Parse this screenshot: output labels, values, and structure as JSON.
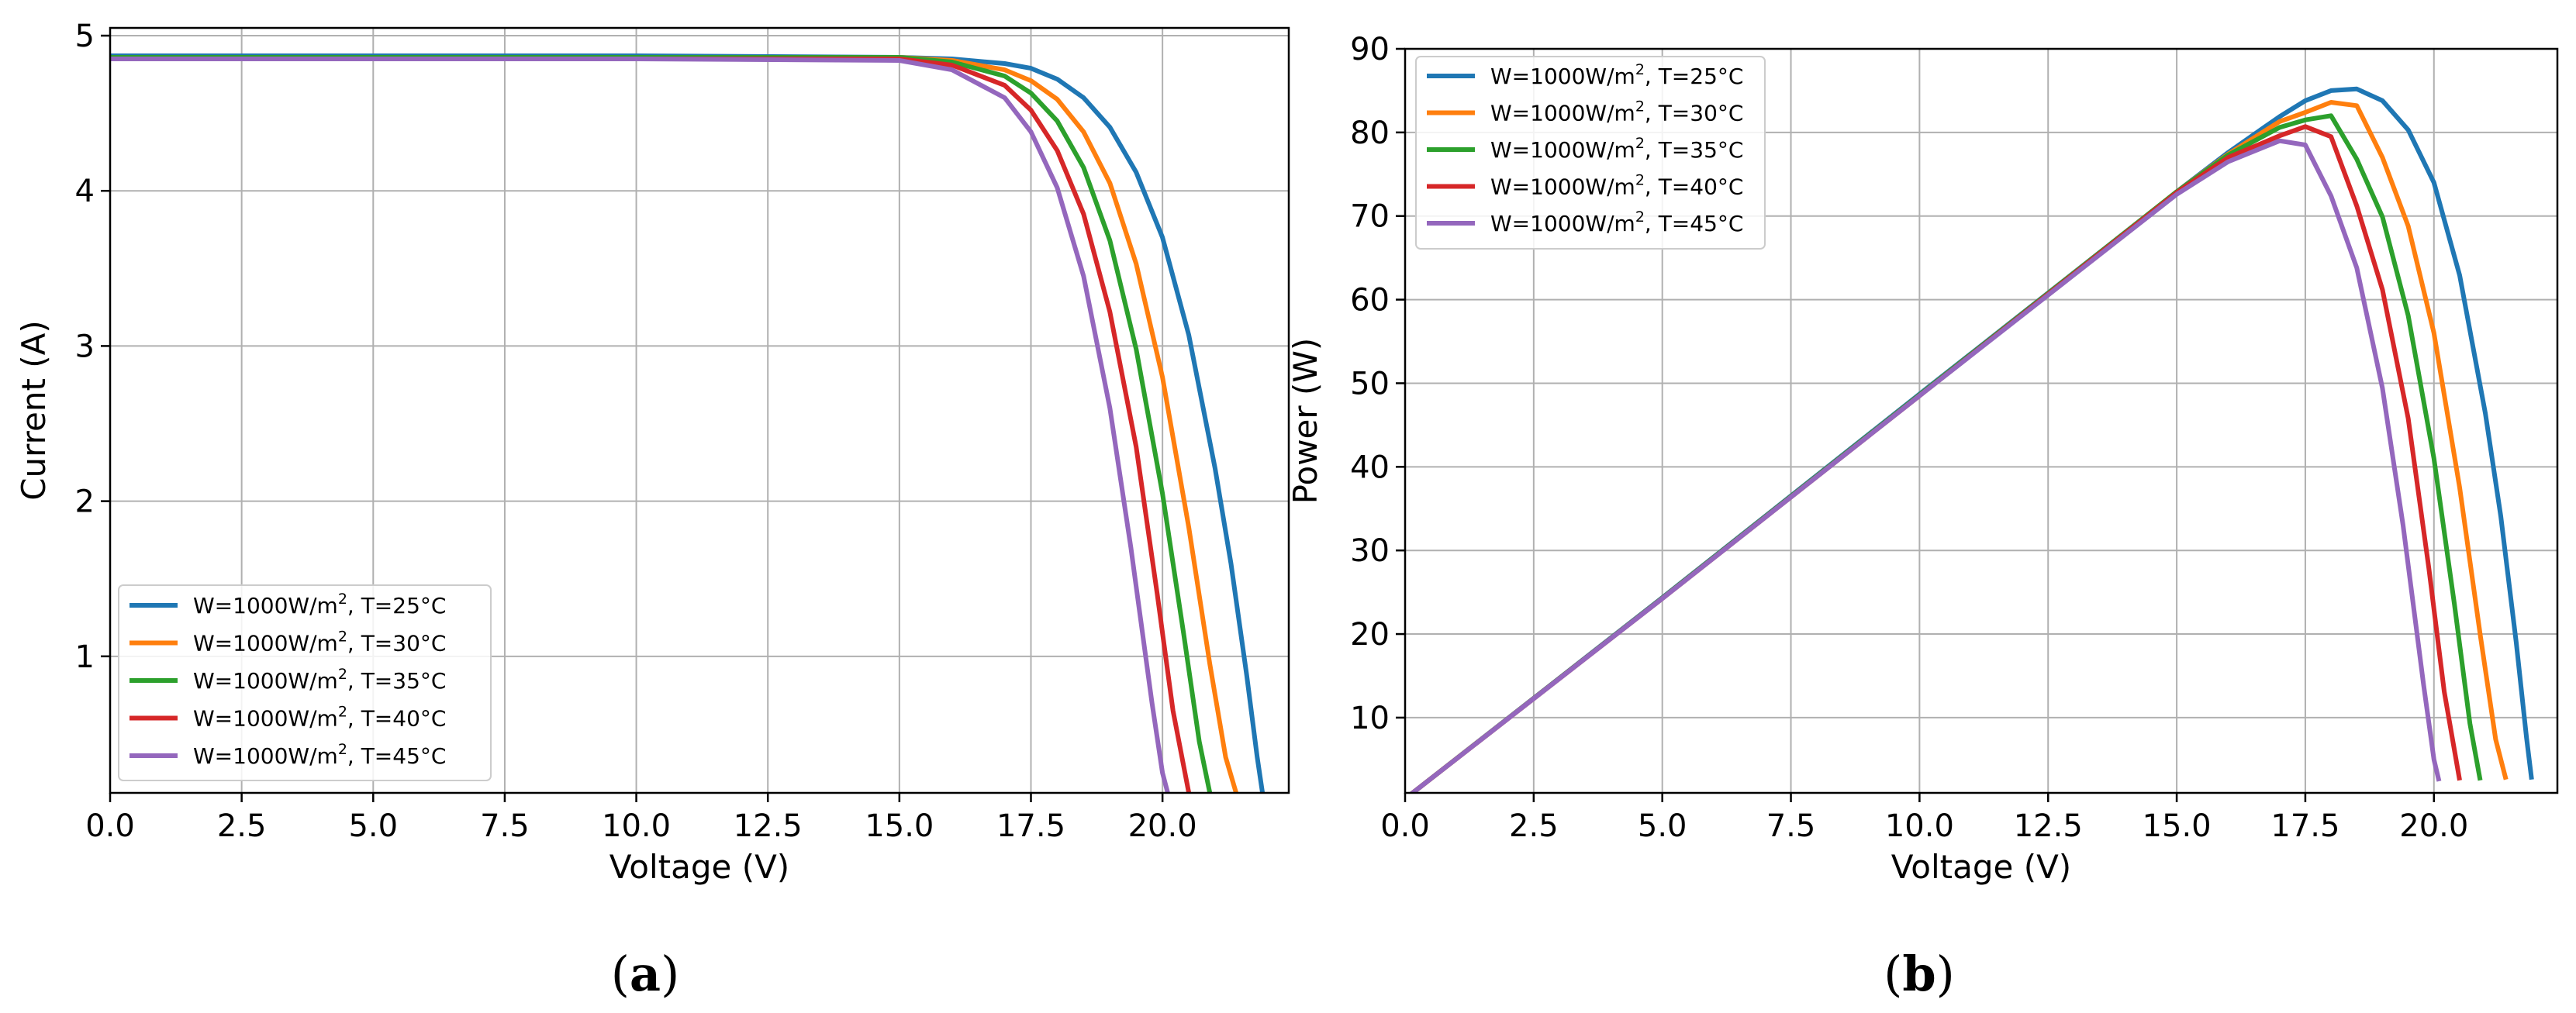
{
  "figure": {
    "captions": [
      {
        "open": "(",
        "letter": "a",
        "close": ")"
      },
      {
        "open": "(",
        "letter": "b",
        "close": ")"
      }
    ],
    "legend_unit": {
      "prefix": "W=1000W/m",
      "sup": "2"
    }
  },
  "chart_data": [
    {
      "type": "line",
      "title": "",
      "xlabel": "Voltage (V)",
      "ylabel": "Current (A)",
      "xlim": [
        0,
        22.4
      ],
      "ylim": [
        0.12,
        5.05
      ],
      "xticks": [
        0,
        2.5,
        5,
        7.5,
        10,
        12.5,
        15,
        17.5,
        20
      ],
      "xtick_labels": [
        "0.0",
        "2.5",
        "5.0",
        "7.5",
        "10.0",
        "12.5",
        "15.0",
        "17.5",
        "20.0"
      ],
      "yticks": [
        1,
        2,
        3,
        4,
        5
      ],
      "ytick_labels": [
        "1",
        "2",
        "3",
        "4",
        "5"
      ],
      "grid": true,
      "legend_position": "lower-left",
      "series": [
        {
          "name": "W=1000W/m2, T=25°C",
          "legend_suffix": ", T=25°C",
          "color": "#1f77b4",
          "x": [
            0,
            5,
            10,
            15,
            16,
            17,
            17.5,
            18,
            18.5,
            19,
            19.5,
            20,
            20.5,
            21,
            21.3,
            21.6,
            21.8,
            21.9
          ],
          "y": [
            4.87,
            4.87,
            4.87,
            4.86,
            4.85,
            4.82,
            4.79,
            4.72,
            4.6,
            4.41,
            4.12,
            3.7,
            3.07,
            2.21,
            1.6,
            0.88,
            0.35,
            0.12
          ]
        },
        {
          "name": "W=1000W/m2, T=30°C",
          "legend_suffix": ", T=30°C",
          "color": "#ff7f0e",
          "x": [
            0,
            5,
            10,
            15,
            16,
            17,
            17.5,
            18,
            18.5,
            19,
            19.5,
            20,
            20.5,
            20.9,
            21.2,
            21.4
          ],
          "y": [
            4.86,
            4.86,
            4.86,
            4.86,
            4.84,
            4.78,
            4.71,
            4.59,
            4.38,
            4.05,
            3.53,
            2.8,
            1.83,
            0.95,
            0.35,
            0.12
          ]
        },
        {
          "name": "W=1000W/m2, T=35°C",
          "legend_suffix": ", T=35°C",
          "color": "#2ca02c",
          "x": [
            0,
            5,
            10,
            15,
            16,
            17,
            17.5,
            18,
            18.5,
            19,
            19.5,
            20,
            20.4,
            20.7,
            20.9
          ],
          "y": [
            4.86,
            4.86,
            4.86,
            4.86,
            4.83,
            4.74,
            4.63,
            4.45,
            4.15,
            3.68,
            2.98,
            2.05,
            1.15,
            0.45,
            0.12
          ]
        },
        {
          "name": "W=1000W/m2, T=40°C",
          "legend_suffix": ", T=40°C",
          "color": "#d62728",
          "x": [
            0,
            5,
            10,
            15,
            16,
            17,
            17.5,
            18,
            18.5,
            19,
            19.5,
            19.9,
            20.2,
            20.5
          ],
          "y": [
            4.85,
            4.85,
            4.85,
            4.85,
            4.81,
            4.68,
            4.52,
            4.26,
            3.85,
            3.22,
            2.35,
            1.4,
            0.65,
            0.12
          ]
        },
        {
          "name": "W=1000W/m2, T=45°C",
          "legend_suffix": ", T=45°C",
          "color": "#9467bd",
          "x": [
            0,
            5,
            10,
            15,
            16,
            17,
            17.5,
            18,
            18.5,
            19,
            19.4,
            19.8,
            20.0,
            20.1
          ],
          "y": [
            4.85,
            4.85,
            4.85,
            4.84,
            4.78,
            4.6,
            4.38,
            4.02,
            3.45,
            2.6,
            1.7,
            0.7,
            0.25,
            0.12
          ]
        }
      ]
    },
    {
      "type": "line",
      "title": "",
      "xlabel": "Voltage (V)",
      "ylabel": "Power (W)",
      "xlim": [
        0,
        22.4
      ],
      "ylim": [
        1,
        90
      ],
      "xticks": [
        0,
        2.5,
        5,
        7.5,
        10,
        12.5,
        15,
        17.5,
        20
      ],
      "xtick_labels": [
        "0.0",
        "2.5",
        "5.0",
        "7.5",
        "10.0",
        "12.5",
        "15.0",
        "17.5",
        "20.0"
      ],
      "yticks": [
        10,
        20,
        30,
        40,
        50,
        60,
        70,
        80,
        90
      ],
      "ytick_labels": [
        "10",
        "20",
        "30",
        "40",
        "50",
        "60",
        "70",
        "80",
        "90"
      ],
      "grid": true,
      "legend_position": "top-left",
      "series": [
        {
          "name": "W=1000W/m2, T=25°C",
          "legend_suffix": ", T=25°C",
          "color": "#1f77b4",
          "x": [
            0,
            5,
            10,
            15,
            16,
            17,
            17.5,
            18,
            18.5,
            19,
            19.5,
            20,
            20.5,
            21,
            21.3,
            21.6,
            21.8,
            21.9
          ],
          "y": [
            0.3,
            24.35,
            48.7,
            72.9,
            77.6,
            81.9,
            83.8,
            85.0,
            85.2,
            83.8,
            80.3,
            74.0,
            62.9,
            46.4,
            34.1,
            19.0,
            7.6,
            2.6
          ]
        },
        {
          "name": "W=1000W/m2, T=30°C",
          "legend_suffix": ", T=30°C",
          "color": "#ff7f0e",
          "x": [
            0,
            5,
            10,
            15,
            16,
            17,
            17.5,
            18,
            18.5,
            19,
            19.5,
            20,
            20.5,
            20.9,
            21.2,
            21.4
          ],
          "y": [
            0.3,
            24.3,
            48.6,
            72.9,
            77.4,
            81.3,
            82.4,
            83.6,
            83.2,
            77.0,
            68.8,
            56.0,
            37.5,
            19.9,
            7.4,
            2.6
          ]
        },
        {
          "name": "W=1000W/m2, T=35°C",
          "legend_suffix": ", T=35°C",
          "color": "#2ca02c",
          "x": [
            0,
            5,
            10,
            15,
            16,
            17,
            17.5,
            18,
            18.5,
            19,
            19.5,
            20,
            20.4,
            20.7,
            20.9
          ],
          "y": [
            0.3,
            24.3,
            48.6,
            72.9,
            77.3,
            80.6,
            81.5,
            82.0,
            76.8,
            69.9,
            58.1,
            41.0,
            23.5,
            9.3,
            2.5
          ]
        },
        {
          "name": "W=1000W/m2, T=40°C",
          "legend_suffix": ", T=40°C",
          "color": "#d62728",
          "x": [
            0,
            5,
            10,
            15,
            16,
            17,
            17.5,
            18,
            18.5,
            19,
            19.5,
            19.9,
            20.2,
            20.5
          ],
          "y": [
            0.3,
            24.25,
            48.5,
            72.8,
            77.0,
            79.6,
            80.7,
            79.5,
            71.2,
            61.2,
            45.8,
            27.9,
            13.1,
            2.5
          ]
        },
        {
          "name": "W=1000W/m2, T=45°C",
          "legend_suffix": ", T=45°C",
          "color": "#9467bd",
          "x": [
            0,
            5,
            10,
            15,
            16,
            17,
            17.5,
            18,
            18.5,
            19,
            19.4,
            19.8,
            20.0,
            20.1
          ],
          "y": [
            0.3,
            24.25,
            48.5,
            72.6,
            76.5,
            79.0,
            78.5,
            72.4,
            63.8,
            49.4,
            33.0,
            13.9,
            5.0,
            2.4
          ]
        }
      ]
    }
  ]
}
